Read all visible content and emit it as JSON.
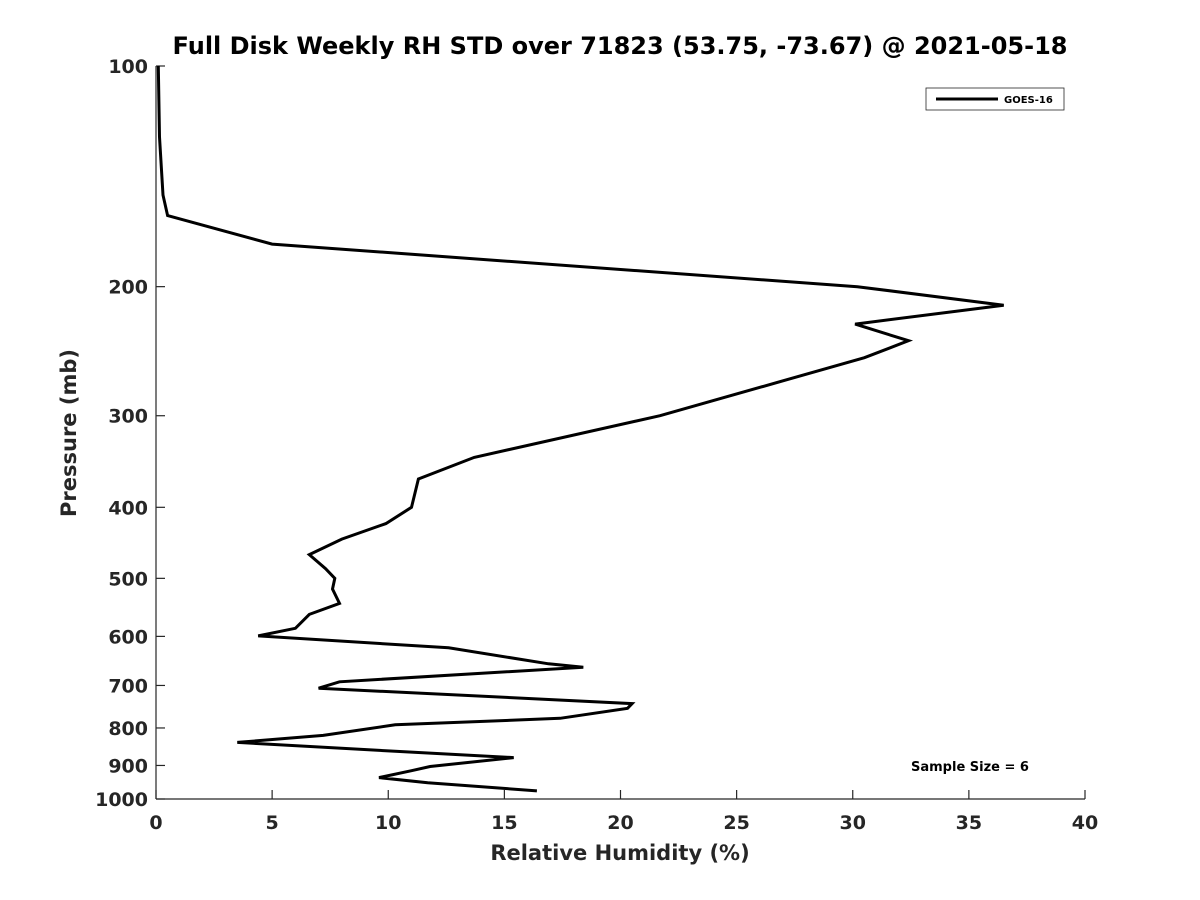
{
  "chart_data": {
    "type": "line",
    "title": "Full Disk Weekly RH STD over 71823 (53.75, -73.67) @ 2021-05-18",
    "xlabel": "Relative Humidity (%)",
    "ylabel": "Pressure (mb)",
    "xlim": [
      0,
      40
    ],
    "ylim": [
      100,
      1000
    ],
    "yscale": "log",
    "yreversed": true,
    "x_ticks": [
      0,
      5,
      10,
      15,
      20,
      25,
      30,
      35,
      40
    ],
    "y_ticks": [
      100,
      200,
      300,
      400,
      500,
      600,
      700,
      800,
      900,
      1000
    ],
    "grid": false,
    "legend_position": "top-right",
    "annotation": "Sample Size = 6",
    "series": [
      {
        "name": "GOES-16",
        "color": "#000000",
        "points": [
          [
            0.1,
            100
          ],
          [
            0.15,
            125
          ],
          [
            0.3,
            150
          ],
          [
            0.5,
            160
          ],
          [
            5.0,
            175
          ],
          [
            30.2,
            200
          ],
          [
            36.5,
            212
          ],
          [
            30.1,
            225
          ],
          [
            32.4,
            237
          ],
          [
            30.5,
            250
          ],
          [
            21.7,
            300
          ],
          [
            13.7,
            342
          ],
          [
            11.3,
            366
          ],
          [
            11.0,
            400
          ],
          [
            9.9,
            421
          ],
          [
            8.0,
            442
          ],
          [
            6.6,
            464
          ],
          [
            7.3,
            485
          ],
          [
            7.7,
            500
          ],
          [
            7.6,
            517
          ],
          [
            7.9,
            541
          ],
          [
            6.6,
            560
          ],
          [
            6.0,
            585
          ],
          [
            4.4,
            599
          ],
          [
            12.6,
            622
          ],
          [
            16.9,
            654
          ],
          [
            18.4,
            661
          ],
          [
            7.9,
            692
          ],
          [
            7.0,
            706
          ],
          [
            20.5,
            741
          ],
          [
            20.3,
            752
          ],
          [
            17.4,
            776
          ],
          [
            10.3,
            792
          ],
          [
            7.2,
            819
          ],
          [
            3.5,
            837
          ],
          [
            10.4,
            861
          ],
          [
            15.4,
            878
          ],
          [
            11.8,
            903
          ],
          [
            11.0,
            915
          ],
          [
            9.6,
            935
          ],
          [
            11.7,
            950
          ],
          [
            16.4,
            975
          ]
        ]
      }
    ]
  }
}
